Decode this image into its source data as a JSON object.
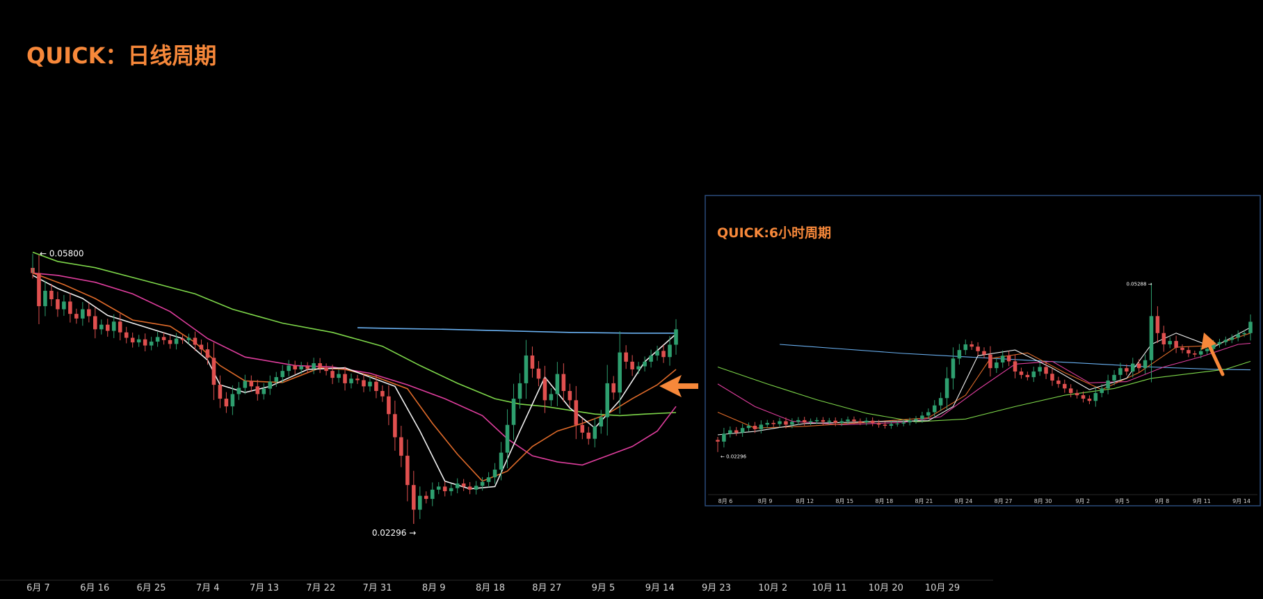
{
  "colors": {
    "background": "#000000",
    "title": "#f7883a",
    "arrow": "#f7883a",
    "candle_up": "#2e9f6f",
    "candle_down": "#e0504f",
    "ma_white": "#f2f2f2",
    "ma_orange": "#e06b2a",
    "ma_pink": "#e03e9e",
    "ma_green": "#7ed84a",
    "ma_blue": "#6ab1f2",
    "axis_text": "#d6d6d6",
    "inset_border": "#2b4a7a"
  },
  "main_title": "QUICK：日线周期",
  "inset_title": "QUICK:6小时周期",
  "chart_data": [
    {
      "type": "candlestick",
      "name_printed": "",
      "timeframe": "daily",
      "x_ticks": [
        "6月 7",
        "6月 16",
        "6月 25",
        "7月 4",
        "7月 13",
        "7月 22",
        "7月 31",
        "8月 9",
        "8月 18",
        "8月 27",
        "9月 5",
        "9月 14",
        "9月 23",
        "10月 2",
        "10月 11",
        "10月 20",
        "10月 29"
      ],
      "ylim": [
        0.018,
        0.067
      ],
      "high_label": "← 0.05800",
      "low_label": "0.02296 →",
      "high": 0.058,
      "low": 0.02296,
      "closes": [
        0.0555,
        0.0512,
        0.0532,
        0.0521,
        0.0508,
        0.0518,
        0.0502,
        0.0496,
        0.0508,
        0.0499,
        0.0482,
        0.0488,
        0.048,
        0.0492,
        0.0478,
        0.0471,
        0.0465,
        0.0469,
        0.0461,
        0.0466,
        0.0472,
        0.0468,
        0.0463,
        0.047,
        0.0468,
        0.0471,
        0.0462,
        0.0456,
        0.0445,
        0.041,
        0.0392,
        0.0382,
        0.0398,
        0.0406,
        0.0415,
        0.0408,
        0.0398,
        0.0405,
        0.0414,
        0.042,
        0.0428,
        0.0435,
        0.043,
        0.0434,
        0.0431,
        0.0438,
        0.0432,
        0.0428,
        0.0419,
        0.0424,
        0.0412,
        0.0418,
        0.0416,
        0.0408,
        0.0414,
        0.0402,
        0.0395,
        0.0372,
        0.0342,
        0.0318,
        0.028,
        0.0248,
        0.0266,
        0.0262,
        0.0274,
        0.0278,
        0.0272,
        0.0276,
        0.0282,
        0.0278,
        0.0274,
        0.0279,
        0.0284,
        0.029,
        0.03,
        0.0322,
        0.0358,
        0.0392,
        0.0412,
        0.0448,
        0.0431,
        0.0418,
        0.039,
        0.0398,
        0.0424,
        0.0402,
        0.039,
        0.0358,
        0.0348,
        0.034,
        0.0356,
        0.0368,
        0.0412,
        0.04,
        0.0452,
        0.044,
        0.043,
        0.0434,
        0.044,
        0.0448,
        0.0454,
        0.0446,
        0.0462,
        0.0482
      ],
      "series": [
        {
          "name": "",
          "color_key": "ma_blue",
          "points": [
            [
              52,
              0.0484
            ],
            [
              58,
              0.0483
            ],
            [
              66,
              0.0482
            ],
            [
              76,
              0.048
            ],
            [
              86,
              0.0478
            ],
            [
              96,
              0.0477
            ],
            [
              103,
              0.0477
            ]
          ]
        },
        {
          "name": "",
          "color_key": "ma_green",
          "points": [
            [
              0,
              0.0582
            ],
            [
              4,
              0.057
            ],
            [
              10,
              0.0562
            ],
            [
              18,
              0.0545
            ],
            [
              26,
              0.0528
            ],
            [
              32,
              0.0508
            ],
            [
              40,
              0.049
            ],
            [
              48,
              0.0478
            ],
            [
              56,
              0.046
            ],
            [
              62,
              0.0435
            ],
            [
              68,
              0.0412
            ],
            [
              74,
              0.0392
            ],
            [
              78,
              0.0385
            ],
            [
              82,
              0.0382
            ],
            [
              86,
              0.0377
            ],
            [
              90,
              0.0372
            ],
            [
              94,
              0.037
            ],
            [
              98,
              0.0372
            ],
            [
              103,
              0.0374
            ]
          ]
        },
        {
          "name": "",
          "color_key": "ma_pink",
          "points": [
            [
              0,
              0.0555
            ],
            [
              4,
              0.0552
            ],
            [
              10,
              0.0543
            ],
            [
              16,
              0.0528
            ],
            [
              22,
              0.0505
            ],
            [
              28,
              0.047
            ],
            [
              34,
              0.0446
            ],
            [
              42,
              0.0435
            ],
            [
              48,
              0.0433
            ],
            [
              54,
              0.0425
            ],
            [
              60,
              0.041
            ],
            [
              66,
              0.0392
            ],
            [
              72,
              0.037
            ],
            [
              76,
              0.034
            ],
            [
              80,
              0.0318
            ],
            [
              84,
              0.031
            ],
            [
              88,
              0.0306
            ],
            [
              92,
              0.0318
            ],
            [
              96,
              0.033
            ],
            [
              100,
              0.035
            ],
            [
              103,
              0.0382
            ]
          ]
        },
        {
          "name": "",
          "color_key": "ma_orange",
          "points": [
            [
              0,
              0.0555
            ],
            [
              5,
              0.054
            ],
            [
              10,
              0.0522
            ],
            [
              16,
              0.0494
            ],
            [
              22,
              0.0486
            ],
            [
              26,
              0.0465
            ],
            [
              30,
              0.0435
            ],
            [
              34,
              0.0415
            ],
            [
              40,
              0.0413
            ],
            [
              46,
              0.0432
            ],
            [
              50,
              0.043
            ],
            [
              55,
              0.042
            ],
            [
              60,
              0.0405
            ],
            [
              64,
              0.036
            ],
            [
              68,
              0.032
            ],
            [
              72,
              0.0285
            ],
            [
              76,
              0.0298
            ],
            [
              80,
              0.033
            ],
            [
              84,
              0.035
            ],
            [
              88,
              0.036
            ],
            [
              92,
              0.0372
            ],
            [
              96,
              0.0392
            ],
            [
              100,
              0.041
            ],
            [
              103,
              0.043
            ]
          ]
        },
        {
          "name": "",
          "color_key": "ma_white",
          "points": [
            [
              0,
              0.0552
            ],
            [
              4,
              0.0535
            ],
            [
              8,
              0.0522
            ],
            [
              12,
              0.05
            ],
            [
              16,
              0.049
            ],
            [
              20,
              0.048
            ],
            [
              24,
              0.047
            ],
            [
              28,
              0.0442
            ],
            [
              30,
              0.041
            ],
            [
              34,
              0.04
            ],
            [
              38,
              0.0408
            ],
            [
              44,
              0.043
            ],
            [
              50,
              0.0432
            ],
            [
              54,
              0.042
            ],
            [
              58,
              0.0408
            ],
            [
              62,
              0.035
            ],
            [
              66,
              0.0285
            ],
            [
              70,
              0.0275
            ],
            [
              74,
              0.0278
            ],
            [
              78,
              0.035
            ],
            [
              82,
              0.042
            ],
            [
              86,
              0.038
            ],
            [
              90,
              0.0354
            ],
            [
              94,
              0.039
            ],
            [
              98,
              0.044
            ],
            [
              103,
              0.0476
            ]
          ]
        }
      ]
    },
    {
      "type": "candlestick",
      "name_printed": "",
      "timeframe": "6h",
      "x_ticks": [
        "8月 6",
        "8月 9",
        "8月 12",
        "8月 15",
        "8月 18",
        "8月 21",
        "8月 24",
        "8月 27",
        "8月 30",
        "9月 2",
        "9月 5",
        "9月 8",
        "9月 11",
        "9月 14"
      ],
      "ylim": [
        0.018,
        0.066
      ],
      "high_label": "0.05288 →",
      "low_label": "← 0.02296",
      "high": 0.05288,
      "low": 0.02296,
      "closes": [
        0.0248,
        0.0262,
        0.0268,
        0.0264,
        0.0272,
        0.0276,
        0.027,
        0.0278,
        0.0281,
        0.0279,
        0.0284,
        0.0278,
        0.0283,
        0.0286,
        0.0282,
        0.0284,
        0.0286,
        0.0283,
        0.0285,
        0.0281,
        0.0284,
        0.0287,
        0.0284,
        0.0282,
        0.0285,
        0.0281,
        0.0278,
        0.0276,
        0.0279,
        0.028,
        0.0282,
        0.0285,
        0.0288,
        0.0294,
        0.03,
        0.0312,
        0.0325,
        0.036,
        0.0395,
        0.041,
        0.042,
        0.0416,
        0.0408,
        0.0402,
        0.0378,
        0.0388,
        0.04,
        0.039,
        0.0372,
        0.0366,
        0.0362,
        0.0372,
        0.038,
        0.0368,
        0.0356,
        0.035,
        0.0342,
        0.0334,
        0.033,
        0.0324,
        0.032,
        0.0334,
        0.0342,
        0.0356,
        0.0366,
        0.0378,
        0.0372,
        0.0386,
        0.0378,
        0.0392,
        0.047,
        0.044,
        0.042,
        0.0426,
        0.0414,
        0.041,
        0.0404,
        0.0402,
        0.0408,
        0.0412,
        0.042,
        0.0424,
        0.0428,
        0.0432,
        0.0438,
        0.044,
        0.046
      ],
      "series": [
        {
          "name": "",
          "color_key": "ma_blue",
          "points": [
            [
              10,
              0.042
            ],
            [
              20,
              0.0412
            ],
            [
              30,
              0.0404
            ],
            [
              40,
              0.0398
            ],
            [
              50,
              0.0392
            ],
            [
              60,
              0.0386
            ],
            [
              70,
              0.038
            ],
            [
              80,
              0.0376
            ],
            [
              86,
              0.0375
            ]
          ]
        },
        {
          "name": "",
          "color_key": "ma_green",
          "points": [
            [
              0,
              0.038
            ],
            [
              8,
              0.035
            ],
            [
              16,
              0.0322
            ],
            [
              24,
              0.0298
            ],
            [
              32,
              0.0283
            ],
            [
              40,
              0.0288
            ],
            [
              48,
              0.031
            ],
            [
              56,
              0.033
            ],
            [
              64,
              0.0342
            ],
            [
              70,
              0.036
            ],
            [
              76,
              0.0368
            ],
            [
              82,
              0.0376
            ],
            [
              86,
              0.039
            ]
          ]
        },
        {
          "name": "",
          "color_key": "ma_pink",
          "points": [
            [
              0,
              0.035
            ],
            [
              6,
              0.031
            ],
            [
              12,
              0.0284
            ],
            [
              20,
              0.0278
            ],
            [
              30,
              0.0282
            ],
            [
              36,
              0.0292
            ],
            [
              42,
              0.034
            ],
            [
              48,
              0.0385
            ],
            [
              54,
              0.039
            ],
            [
              60,
              0.0352
            ],
            [
              66,
              0.0354
            ],
            [
              72,
              0.038
            ],
            [
              78,
              0.0398
            ],
            [
              84,
              0.042
            ],
            [
              86,
              0.0422
            ]
          ]
        },
        {
          "name": "",
          "color_key": "ma_orange",
          "points": [
            [
              0,
              0.03
            ],
            [
              6,
              0.0272
            ],
            [
              14,
              0.0275
            ],
            [
              24,
              0.0282
            ],
            [
              34,
              0.029
            ],
            [
              40,
              0.033
            ],
            [
              44,
              0.0395
            ],
            [
              50,
              0.0405
            ],
            [
              56,
              0.037
            ],
            [
              62,
              0.034
            ],
            [
              68,
              0.037
            ],
            [
              74,
              0.0415
            ],
            [
              80,
              0.0418
            ],
            [
              86,
              0.044
            ]
          ]
        },
        {
          "name": "",
          "color_key": "ma_white",
          "points": [
            [
              0,
              0.026
            ],
            [
              6,
              0.0266
            ],
            [
              14,
              0.028
            ],
            [
              24,
              0.0283
            ],
            [
              34,
              0.0285
            ],
            [
              38,
              0.031
            ],
            [
              42,
              0.04
            ],
            [
              48,
              0.041
            ],
            [
              54,
              0.0378
            ],
            [
              60,
              0.034
            ],
            [
              66,
              0.036
            ],
            [
              70,
              0.042
            ],
            [
              74,
              0.044
            ],
            [
              80,
              0.0415
            ],
            [
              86,
              0.045
            ]
          ]
        }
      ]
    }
  ]
}
